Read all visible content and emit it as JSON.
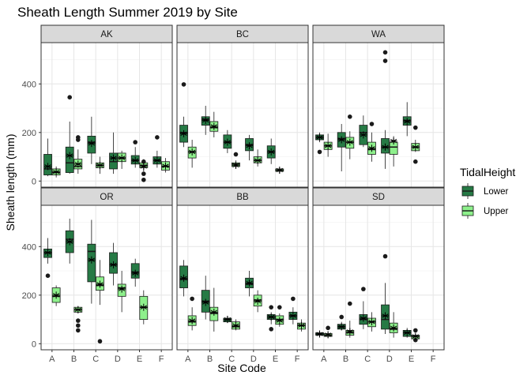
{
  "chart_data": {
    "type": "boxplot",
    "title": "Sheath Length Summer 2019 by Site",
    "xlabel": "Site Code",
    "ylabel": "Sheath length (mm)",
    "categories": [
      "A",
      "B",
      "C",
      "D",
      "E",
      "F"
    ],
    "y_ticks": [
      0,
      200,
      400
    ],
    "ylim": [
      -25,
      570
    ],
    "grid": true,
    "legend": {
      "title": "TidalHeight",
      "position": "right",
      "entries": [
        {
          "name": "Lower",
          "color": "#267a45"
        },
        {
          "name": "Upper",
          "color": "#8ef08c"
        }
      ]
    },
    "mean_marker": "asterisk",
    "panels": [
      {
        "name": "AK",
        "groups": [
          {
            "site": "A",
            "tide": "Lower",
            "min": 20,
            "q1": 25,
            "median": 50,
            "q3": 110,
            "max": 175,
            "mean": 60,
            "outliers": []
          },
          {
            "site": "A",
            "tide": "Upper",
            "min": 15,
            "q1": 25,
            "median": 35,
            "q3": 50,
            "max": 60,
            "mean": 38,
            "outliers": []
          },
          {
            "site": "B",
            "tide": "Lower",
            "min": 30,
            "q1": 35,
            "median": 75,
            "q3": 140,
            "max": 245,
            "mean": 105,
            "outliers": [
              345
            ]
          },
          {
            "site": "B",
            "tide": "Upper",
            "min": 30,
            "q1": 50,
            "median": 60,
            "q3": 90,
            "max": 130,
            "mean": 70,
            "outliers": [
              170,
              180
            ]
          },
          {
            "site": "C",
            "tide": "Lower",
            "min": 70,
            "q1": 115,
            "median": 160,
            "q3": 185,
            "max": 265,
            "mean": 155,
            "outliers": []
          },
          {
            "site": "C",
            "tide": "Upper",
            "min": 30,
            "q1": 55,
            "median": 65,
            "q3": 75,
            "max": 100,
            "mean": 65,
            "outliers": []
          },
          {
            "site": "D",
            "tide": "Lower",
            "min": 30,
            "q1": 50,
            "median": 80,
            "q3": 115,
            "max": 200,
            "mean": 95,
            "outliers": []
          },
          {
            "site": "D",
            "tide": "Upper",
            "min": 50,
            "q1": 80,
            "median": 95,
            "q3": 115,
            "max": 125,
            "mean": 95,
            "outliers": []
          },
          {
            "site": "E",
            "tide": "Lower",
            "min": 55,
            "q1": 70,
            "median": 85,
            "q3": 105,
            "max": 140,
            "mean": 85,
            "outliers": [
              160
            ]
          },
          {
            "site": "E",
            "tide": "Upper",
            "min": 40,
            "q1": 55,
            "median": 65,
            "q3": 75,
            "max": 90,
            "mean": 60,
            "outliers": [
              5,
              30,
              80
            ]
          },
          {
            "site": "F",
            "tide": "Lower",
            "min": 55,
            "q1": 70,
            "median": 85,
            "q3": 100,
            "max": 125,
            "mean": 85,
            "outliers": [
              180
            ]
          },
          {
            "site": "F",
            "tide": "Upper",
            "min": 35,
            "q1": 45,
            "median": 60,
            "q3": 80,
            "max": 95,
            "mean": 62,
            "outliers": []
          }
        ]
      },
      {
        "name": "BC",
        "groups": [
          {
            "site": "A",
            "tide": "Lower",
            "min": 140,
            "q1": 160,
            "median": 200,
            "q3": 230,
            "max": 265,
            "mean": 195,
            "outliers": [
              398
            ]
          },
          {
            "site": "A",
            "tide": "Upper",
            "min": 55,
            "q1": 95,
            "median": 120,
            "q3": 140,
            "max": 170,
            "mean": 120,
            "outliers": []
          },
          {
            "site": "B",
            "tide": "Lower",
            "min": 190,
            "q1": 230,
            "median": 255,
            "q3": 265,
            "max": 310,
            "mean": 250,
            "outliers": []
          },
          {
            "site": "B",
            "tide": "Upper",
            "min": 180,
            "q1": 205,
            "median": 220,
            "q3": 245,
            "max": 285,
            "mean": 225,
            "outliers": []
          },
          {
            "site": "C",
            "tide": "Lower",
            "min": 115,
            "q1": 135,
            "median": 160,
            "q3": 190,
            "max": 210,
            "mean": 160,
            "outliers": []
          },
          {
            "site": "C",
            "tide": "Upper",
            "min": 50,
            "q1": 60,
            "median": 70,
            "q3": 75,
            "max": 85,
            "mean": 65,
            "outliers": [
              110
            ]
          },
          {
            "site": "D",
            "tide": "Lower",
            "min": 85,
            "q1": 125,
            "median": 150,
            "q3": 175,
            "max": 190,
            "mean": 145,
            "outliers": []
          },
          {
            "site": "D",
            "tide": "Upper",
            "min": 60,
            "q1": 75,
            "median": 85,
            "q3": 100,
            "max": 130,
            "mean": 85,
            "outliers": []
          },
          {
            "site": "E",
            "tide": "Lower",
            "min": 70,
            "q1": 95,
            "median": 120,
            "q3": 145,
            "max": 175,
            "mean": 120,
            "outliers": []
          },
          {
            "site": "E",
            "tide": "Upper",
            "min": 30,
            "q1": 40,
            "median": 45,
            "q3": 50,
            "max": 55,
            "mean": 45,
            "outliers": []
          }
        ]
      },
      {
        "name": "WA",
        "groups": [
          {
            "site": "A",
            "tide": "Lower",
            "min": 160,
            "q1": 170,
            "median": 180,
            "q3": 190,
            "max": 200,
            "mean": 180,
            "outliers": [
              120
            ]
          },
          {
            "site": "A",
            "tide": "Upper",
            "min": 100,
            "q1": 130,
            "median": 145,
            "q3": 160,
            "max": 195,
            "mean": 145,
            "outliers": []
          },
          {
            "site": "B",
            "tide": "Lower",
            "min": 40,
            "q1": 140,
            "median": 175,
            "q3": 200,
            "max": 235,
            "mean": 170,
            "outliers": []
          },
          {
            "site": "B",
            "tide": "Upper",
            "min": 90,
            "q1": 135,
            "median": 160,
            "q3": 180,
            "max": 205,
            "mean": 160,
            "outliers": [
              265
            ]
          },
          {
            "site": "C",
            "tide": "Lower",
            "min": 140,
            "q1": 150,
            "median": 200,
            "q3": 230,
            "max": 270,
            "mean": 190,
            "outliers": []
          },
          {
            "site": "C",
            "tide": "Upper",
            "min": 80,
            "q1": 110,
            "median": 130,
            "q3": 160,
            "max": 200,
            "mean": 135,
            "outliers": [
              235
            ]
          },
          {
            "site": "D",
            "tide": "Lower",
            "min": 50,
            "q1": 115,
            "median": 140,
            "q3": 175,
            "max": 210,
            "mean": 140,
            "outliers": [
              495,
              530
            ]
          },
          {
            "site": "D",
            "tide": "Upper",
            "min": 60,
            "q1": 110,
            "median": 140,
            "q3": 160,
            "max": 185,
            "mean": 165,
            "outliers": []
          },
          {
            "site": "E",
            "tide": "Lower",
            "min": 185,
            "q1": 230,
            "median": 250,
            "q3": 265,
            "max": 325,
            "mean": 245,
            "outliers": []
          },
          {
            "site": "E",
            "tide": "Upper",
            "min": 120,
            "q1": 125,
            "median": 140,
            "q3": 155,
            "max": 170,
            "mean": 140,
            "outliers": [
              80,
              220
            ]
          }
        ]
      },
      {
        "name": "OR",
        "groups": [
          {
            "site": "A",
            "tide": "Lower",
            "min": 330,
            "q1": 355,
            "median": 375,
            "q3": 390,
            "max": 435,
            "mean": 375,
            "outliers": [
              280
            ]
          },
          {
            "site": "A",
            "tide": "Upper",
            "min": 155,
            "q1": 170,
            "median": 195,
            "q3": 230,
            "max": 240,
            "mean": 200,
            "outliers": []
          },
          {
            "site": "B",
            "tide": "Lower",
            "min": 330,
            "q1": 375,
            "median": 430,
            "q3": 465,
            "max": 515,
            "mean": 420,
            "outliers": []
          },
          {
            "site": "B",
            "tide": "Upper",
            "min": 125,
            "q1": 130,
            "median": 140,
            "q3": 150,
            "max": 155,
            "mean": 140,
            "outliers": [
              55,
              75,
              95
            ]
          },
          {
            "site": "C",
            "tide": "Lower",
            "min": 165,
            "q1": 255,
            "median": 380,
            "q3": 410,
            "max": 510,
            "mean": 345,
            "outliers": []
          },
          {
            "site": "C",
            "tide": "Upper",
            "min": 160,
            "q1": 220,
            "median": 240,
            "q3": 275,
            "max": 345,
            "mean": 245,
            "outliers": [
              10
            ]
          },
          {
            "site": "D",
            "tide": "Lower",
            "min": 240,
            "q1": 290,
            "median": 325,
            "q3": 375,
            "max": 415,
            "mean": 325,
            "outliers": []
          },
          {
            "site": "D",
            "tide": "Upper",
            "min": 130,
            "q1": 195,
            "median": 230,
            "q3": 245,
            "max": 300,
            "mean": 225,
            "outliers": []
          },
          {
            "site": "E",
            "tide": "Lower",
            "min": 235,
            "q1": 270,
            "median": 295,
            "q3": 330,
            "max": 350,
            "mean": 290,
            "outliers": []
          },
          {
            "site": "E",
            "tide": "Upper",
            "min": 80,
            "q1": 100,
            "median": 150,
            "q3": 195,
            "max": 220,
            "mean": 150,
            "outliers": []
          }
        ]
      },
      {
        "name": "BB",
        "groups": [
          {
            "site": "A",
            "tide": "Lower",
            "min": 195,
            "q1": 230,
            "median": 265,
            "q3": 320,
            "max": 345,
            "mean": 270,
            "outliers": []
          },
          {
            "site": "A",
            "tide": "Upper",
            "min": 55,
            "q1": 75,
            "median": 90,
            "q3": 115,
            "max": 150,
            "mean": 95,
            "outliers": [
              185
            ]
          },
          {
            "site": "B",
            "tide": "Lower",
            "min": 100,
            "q1": 130,
            "median": 175,
            "q3": 220,
            "max": 280,
            "mean": 170,
            "outliers": []
          },
          {
            "site": "B",
            "tide": "Upper",
            "min": 50,
            "q1": 95,
            "median": 125,
            "q3": 150,
            "max": 230,
            "mean": 130,
            "outliers": []
          },
          {
            "site": "C",
            "tide": "Lower",
            "min": 85,
            "q1": 90,
            "median": 100,
            "q3": 105,
            "max": 115,
            "mean": 100,
            "outliers": []
          },
          {
            "site": "C",
            "tide": "Upper",
            "min": 55,
            "q1": 60,
            "median": 70,
            "q3": 90,
            "max": 100,
            "mean": 75,
            "outliers": []
          },
          {
            "site": "D",
            "tide": "Lower",
            "min": 195,
            "q1": 230,
            "median": 245,
            "q3": 270,
            "max": 300,
            "mean": 250,
            "outliers": []
          },
          {
            "site": "D",
            "tide": "Upper",
            "min": 130,
            "q1": 155,
            "median": 180,
            "q3": 200,
            "max": 220,
            "mean": 175,
            "outliers": []
          },
          {
            "site": "E",
            "tide": "Lower",
            "min": 80,
            "q1": 100,
            "median": 110,
            "q3": 120,
            "max": 130,
            "mean": 110,
            "outliers": [
              60,
              150
            ]
          },
          {
            "site": "E",
            "tide": "Upper",
            "min": 70,
            "q1": 80,
            "median": 100,
            "q3": 115,
            "max": 125,
            "mean": 95,
            "outliers": [
              150
            ]
          },
          {
            "site": "F",
            "tide": "Lower",
            "min": 80,
            "q1": 100,
            "median": 115,
            "q3": 130,
            "max": 150,
            "mean": 115,
            "outliers": [
              185
            ]
          },
          {
            "site": "F",
            "tide": "Upper",
            "min": 50,
            "q1": 60,
            "median": 75,
            "q3": 85,
            "max": 100,
            "mean": 75,
            "outliers": []
          }
        ]
      },
      {
        "name": "SD",
        "groups": [
          {
            "site": "A",
            "tide": "Lower",
            "min": 30,
            "q1": 35,
            "median": 40,
            "q3": 45,
            "max": 50,
            "mean": 40,
            "outliers": []
          },
          {
            "site": "A",
            "tide": "Upper",
            "min": 25,
            "q1": 30,
            "median": 35,
            "q3": 42,
            "max": 50,
            "mean": 37,
            "outliers": [
              65
            ]
          },
          {
            "site": "B",
            "tide": "Lower",
            "min": 55,
            "q1": 60,
            "median": 70,
            "q3": 80,
            "max": 90,
            "mean": 70,
            "outliers": [
              110
            ]
          },
          {
            "site": "B",
            "tide": "Upper",
            "min": 25,
            "q1": 35,
            "median": 45,
            "q3": 55,
            "max": 95,
            "mean": 50,
            "outliers": [
              165
            ]
          },
          {
            "site": "C",
            "tide": "Lower",
            "min": 60,
            "q1": 80,
            "median": 100,
            "q3": 120,
            "max": 175,
            "mean": 105,
            "outliers": [
              225
            ]
          },
          {
            "site": "C",
            "tide": "Upper",
            "min": 50,
            "q1": 70,
            "median": 90,
            "q3": 105,
            "max": 130,
            "mean": 90,
            "outliers": []
          },
          {
            "site": "D",
            "tide": "Lower",
            "min": 40,
            "q1": 60,
            "median": 100,
            "q3": 160,
            "max": 250,
            "mean": 115,
            "outliers": [
              360
            ]
          },
          {
            "site": "D",
            "tide": "Upper",
            "min": 25,
            "q1": 45,
            "median": 60,
            "q3": 85,
            "max": 130,
            "mean": 65,
            "outliers": []
          },
          {
            "site": "E",
            "tide": "Lower",
            "min": 25,
            "q1": 30,
            "median": 45,
            "q3": 55,
            "max": 65,
            "mean": 45,
            "outliers": []
          },
          {
            "site": "E",
            "tide": "Upper",
            "min": 15,
            "q1": 20,
            "median": 30,
            "q3": 35,
            "max": 40,
            "mean": 30,
            "outliers": [
              15,
              55
            ]
          }
        ]
      }
    ]
  }
}
